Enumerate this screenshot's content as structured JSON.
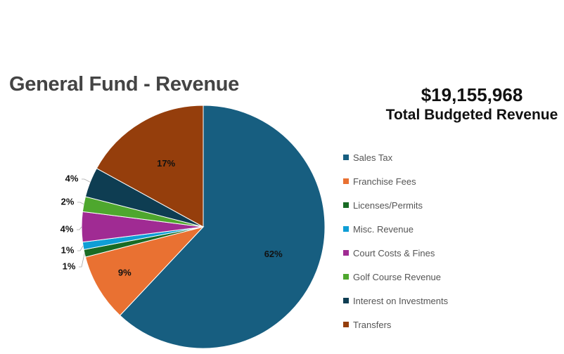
{
  "chart_data": {
    "type": "pie",
    "title": "General Fund - Revenue",
    "total_amount": "$19,155,968",
    "total_label": "Total Budgeted Revenue",
    "legend_position": "right",
    "categories": [
      "Sales Tax",
      "Franchise Fees",
      "Licenses/Permits",
      "Misc. Revenue",
      "Court Costs & Fines",
      "Golf Course Revenue",
      "Interest on Investments",
      "Transfers"
    ],
    "values": [
      62,
      9,
      1,
      1,
      4,
      2,
      4,
      17
    ],
    "labels": [
      "62%",
      "9%",
      "1%",
      "1%",
      "4%",
      "2%",
      "4%",
      "17%"
    ],
    "colors": [
      "#175e80",
      "#e97132",
      "#196b24",
      "#0f9ed5",
      "#a02b93",
      "#4ea72e",
      "#0e3d52",
      "#953e0c"
    ]
  }
}
